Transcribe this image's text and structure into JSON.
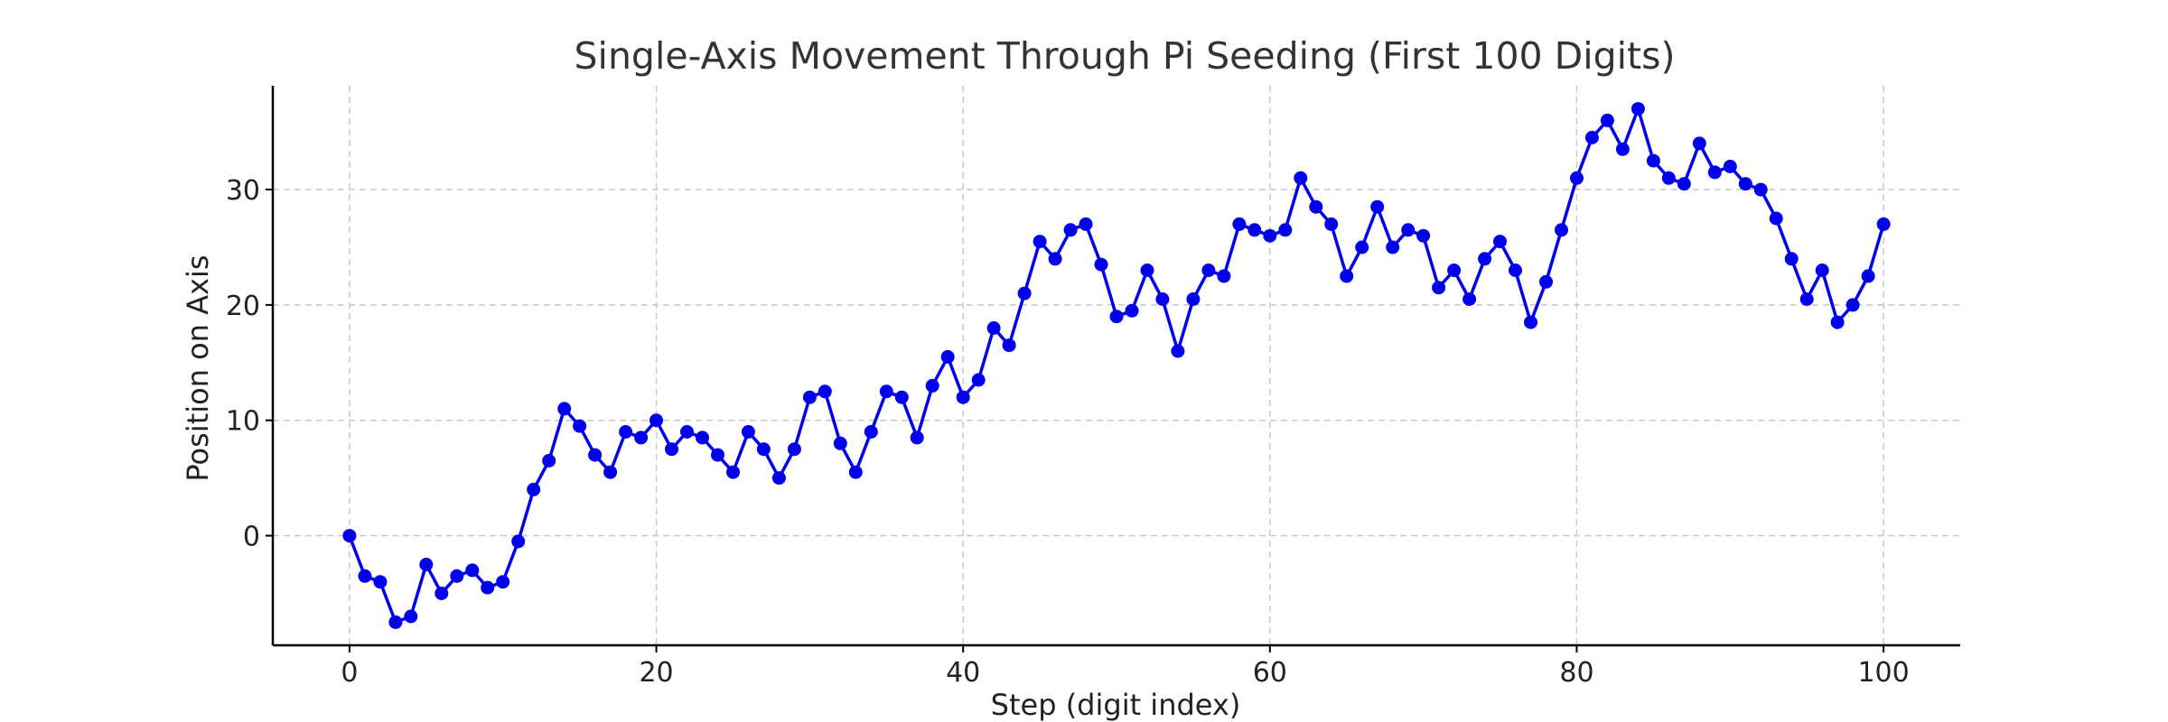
{
  "chart_data": {
    "type": "line",
    "title": "Single-Axis Movement Through Pi Seeding (First 100 Digits)",
    "xlabel": "Step (digit index)",
    "ylabel": "Position on Axis",
    "xlim": [
      -5,
      105
    ],
    "ylim": [
      -9.5,
      39
    ],
    "xticks": [
      0,
      20,
      40,
      60,
      80,
      100
    ],
    "yticks": [
      0,
      10,
      20,
      30
    ],
    "grid": true,
    "series": [
      {
        "color": "#0000ee",
        "marker": "circle",
        "x": [
          0,
          1,
          2,
          3,
          4,
          5,
          6,
          7,
          8,
          9,
          10,
          11,
          12,
          13,
          14,
          15,
          16,
          17,
          18,
          19,
          20,
          21,
          22,
          23,
          24,
          25,
          26,
          27,
          28,
          29,
          30,
          31,
          32,
          33,
          34,
          35,
          36,
          37,
          38,
          39,
          40,
          41,
          42,
          43,
          44,
          45,
          46,
          47,
          48,
          49,
          50,
          51,
          52,
          53,
          54,
          55,
          56,
          57,
          58,
          59,
          60,
          61,
          62,
          63,
          64,
          65,
          66,
          67,
          68,
          69,
          70,
          71,
          72,
          73,
          74,
          75,
          76,
          77,
          78,
          79,
          80,
          81,
          82,
          83,
          84,
          85,
          86,
          87,
          88,
          89,
          90,
          91,
          92,
          93,
          94,
          95,
          96,
          97,
          98,
          99,
          100
        ],
        "y": [
          0,
          -3.5,
          -4,
          -7.5,
          -7,
          -2.5,
          -5,
          -3.5,
          -3,
          -4.5,
          -4,
          -0.5,
          4,
          6.5,
          11,
          9.5,
          7,
          5.5,
          9,
          8.5,
          10,
          7.5,
          9,
          8.5,
          7,
          5.5,
          9,
          7.5,
          5,
          7.5,
          12,
          12.5,
          8,
          5.5,
          9,
          12.5,
          12,
          8.5,
          13,
          15.5,
          12,
          13.5,
          18,
          16.5,
          21,
          25.5,
          24,
          26.5,
          27,
          23.5,
          19,
          19.5,
          23,
          20.5,
          16,
          20.5,
          23,
          22.5,
          27,
          26.5,
          26,
          26.5,
          31,
          28.5,
          27,
          22.5,
          25,
          28.5,
          25,
          26.5,
          26,
          21.5,
          23,
          20.5,
          24,
          25.5,
          23,
          18.5,
          22,
          26.5,
          31,
          34.5,
          36,
          33.5,
          37,
          32.5,
          31,
          30.5,
          34,
          31.5,
          32,
          30.5,
          30,
          27.5,
          24,
          20.5,
          23,
          18.5,
          20,
          22.5,
          27
        ]
      }
    ]
  }
}
